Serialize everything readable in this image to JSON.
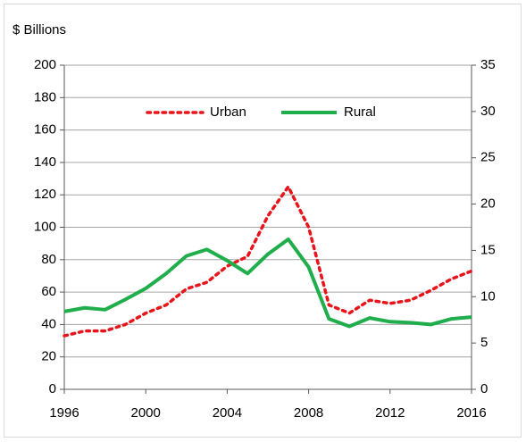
{
  "chart_data": {
    "type": "line",
    "y_label": "$ Billions",
    "x": [
      1996,
      1997,
      1998,
      1999,
      2000,
      2001,
      2002,
      2003,
      2004,
      2005,
      2006,
      2007,
      2008,
      2009,
      2010,
      2011,
      2012,
      2013,
      2014,
      2015,
      2016
    ],
    "series": [
      {
        "name": "Urban",
        "color": "#e8141b",
        "style": "dotted",
        "axis": "y",
        "values": [
          33,
          36,
          36,
          40,
          47,
          52,
          62,
          66,
          76,
          82,
          107,
          125,
          100,
          52,
          47,
          55,
          53,
          55,
          61,
          68,
          73
        ]
      },
      {
        "name": "Rural",
        "color": "#1fae4b",
        "style": "solid",
        "axis": "y2",
        "values": [
          8.4,
          8.8,
          8.6,
          9.7,
          10.9,
          12.5,
          14.4,
          15.1,
          13.9,
          12.5,
          14.6,
          16.2,
          13.2,
          7.6,
          6.8,
          7.7,
          7.3,
          7.2,
          7.0,
          7.6,
          7.8
        ]
      }
    ],
    "xlim": [
      1996,
      2016
    ],
    "xticks": [
      1996,
      2000,
      2004,
      2008,
      2012,
      2016
    ],
    "ylim": [
      0,
      200
    ],
    "yticks": [
      0,
      20,
      40,
      60,
      80,
      100,
      120,
      140,
      160,
      180,
      200
    ],
    "y2lim": [
      0,
      35
    ],
    "y2ticks": [
      0,
      5,
      10,
      15,
      20,
      25,
      30,
      35
    ],
    "grid": true
  }
}
